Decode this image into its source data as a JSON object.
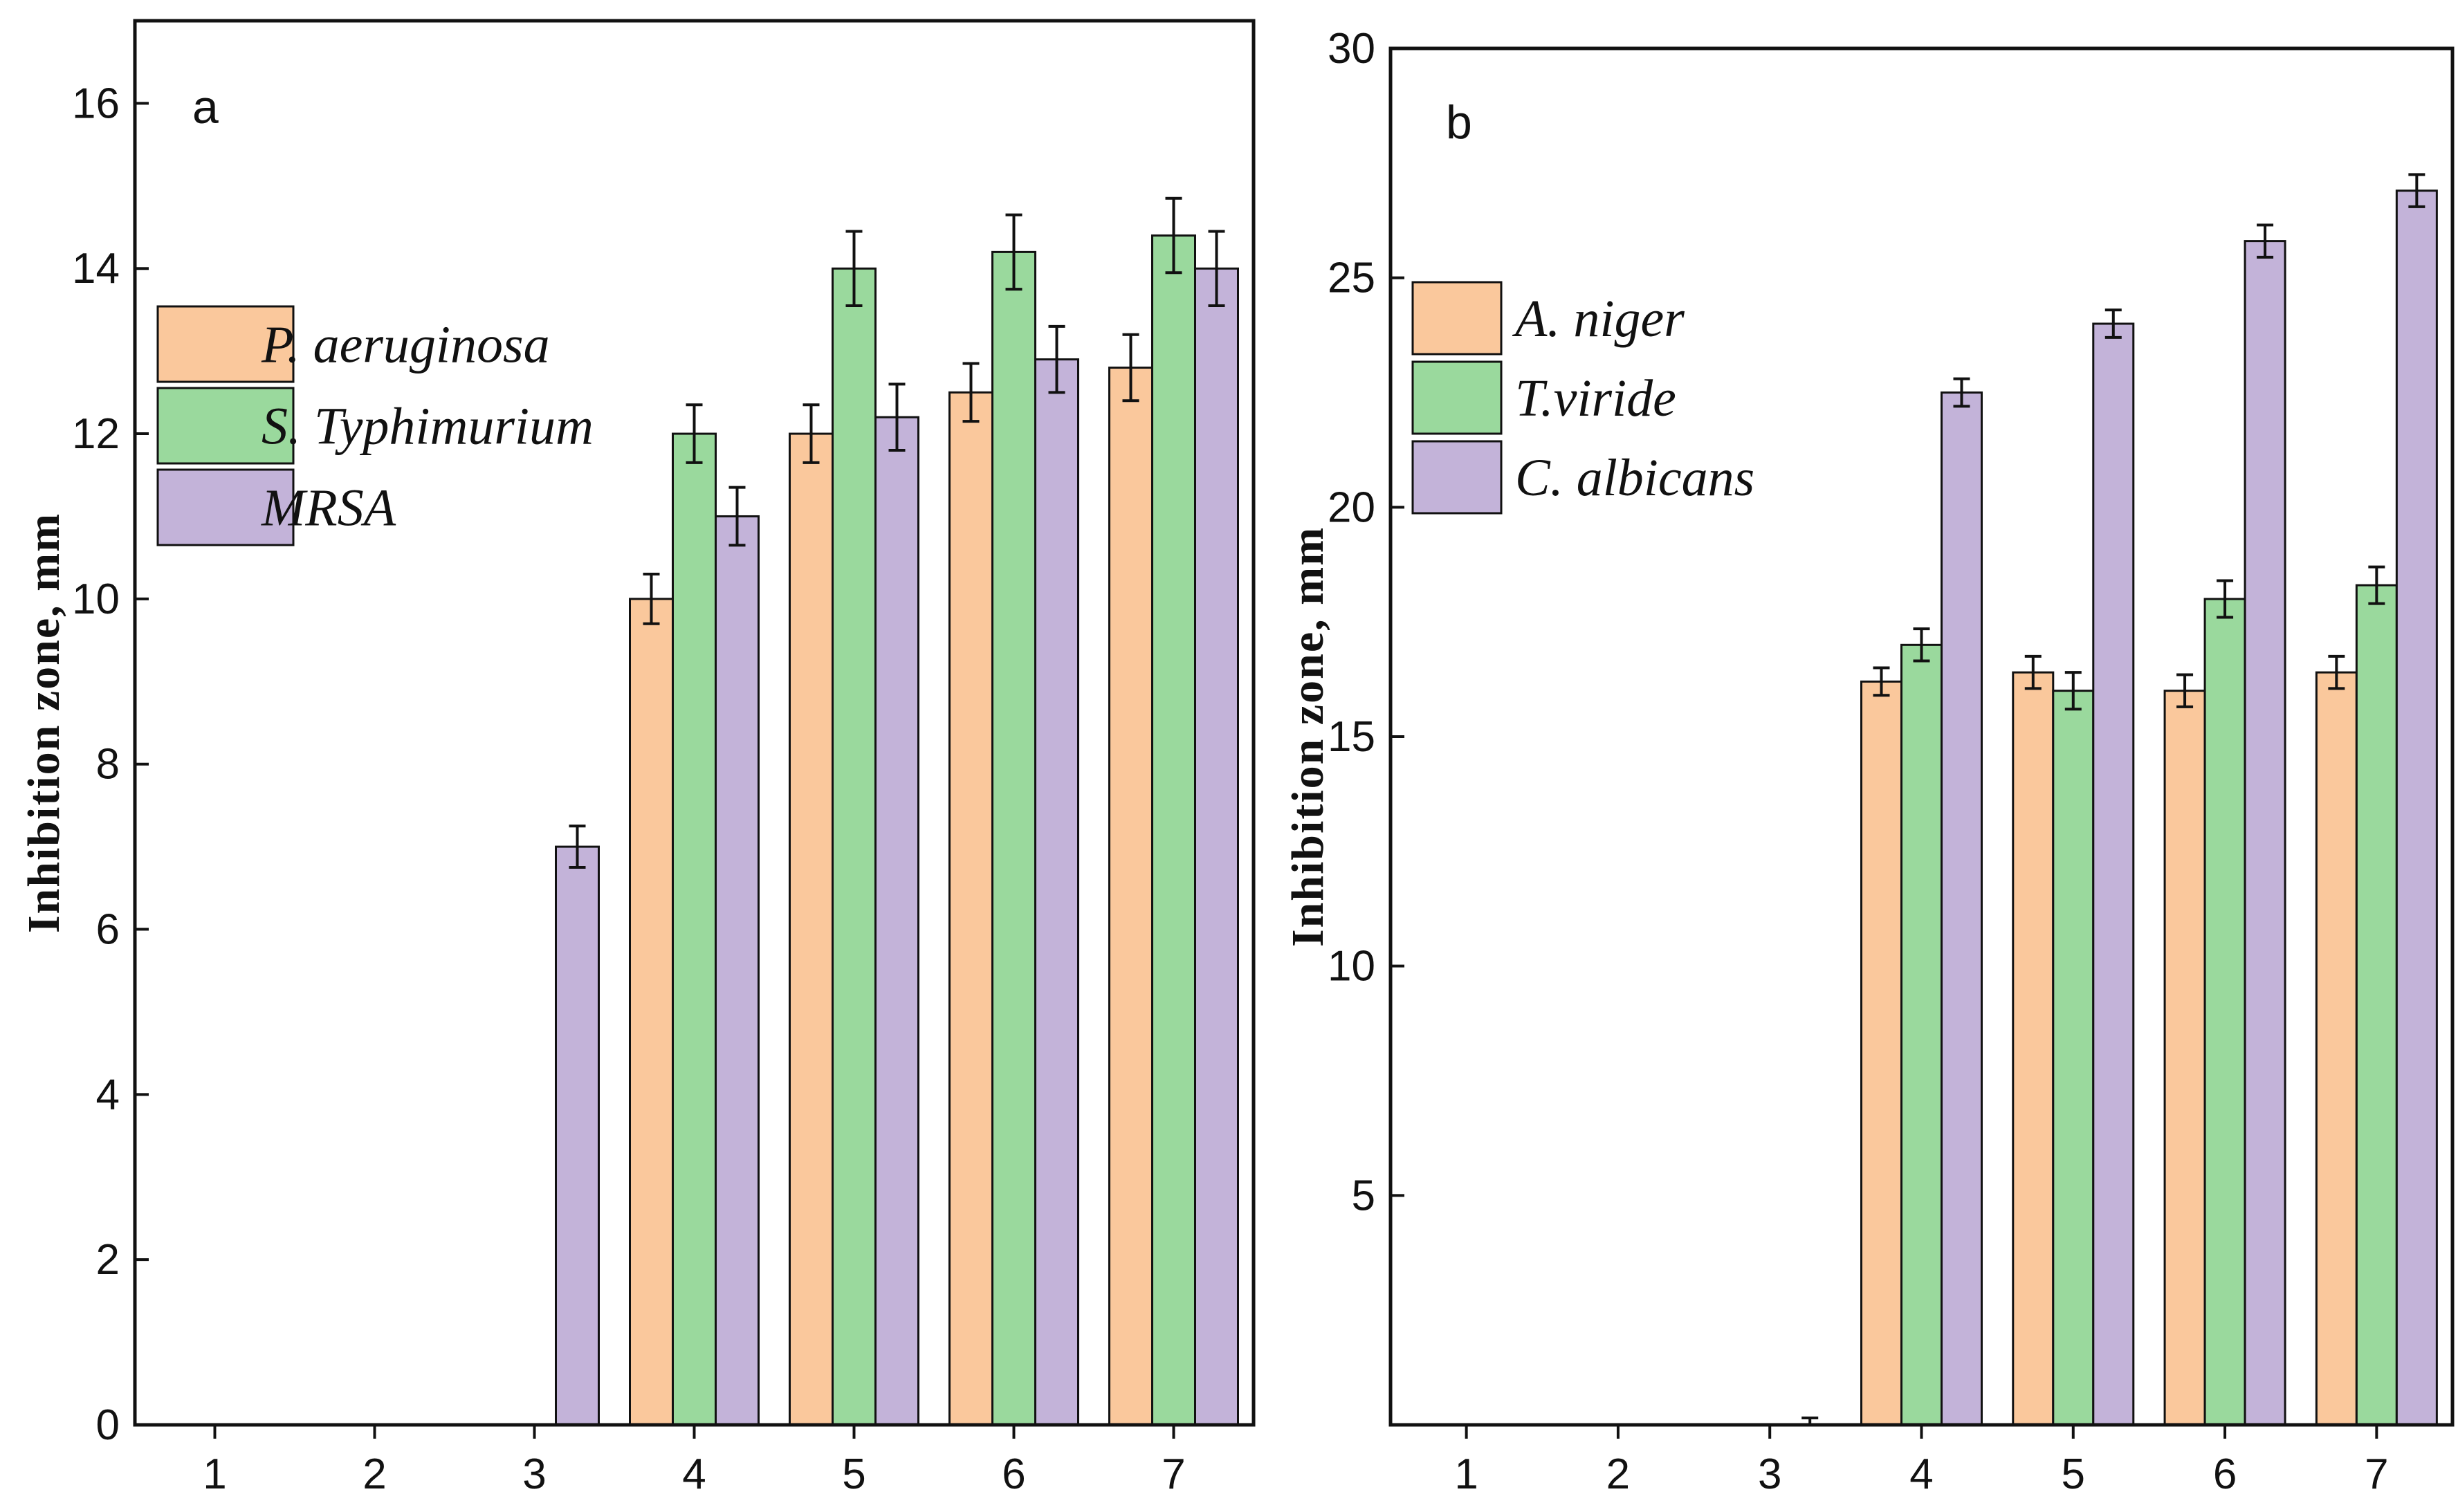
{
  "chart_data": [
    {
      "type": "bar",
      "panel_label": "a",
      "title": "",
      "xlabel": "",
      "ylabel": "Inhibition zone, mm",
      "categories": [
        "1",
        "2",
        "3",
        "4",
        "5",
        "6",
        "7"
      ],
      "ylim": [
        0,
        17
      ],
      "yticks": [
        "0",
        "2",
        "4",
        "6",
        "8",
        "10",
        "12",
        "14",
        "16"
      ],
      "legend_position": "left",
      "series": [
        {
          "name": "P. aeruginosa",
          "color": "#FAC89C",
          "values": [
            0,
            0,
            0,
            10.0,
            12.0,
            12.5,
            12.8
          ],
          "errors": [
            0,
            0,
            0,
            0.3,
            0.35,
            0.35,
            0.4
          ]
        },
        {
          "name": "S. Typhimurium",
          "color": "#9AD99D",
          "values": [
            0,
            0,
            0,
            12.0,
            14.0,
            14.2,
            14.4
          ],
          "errors": [
            0,
            0,
            0,
            0.35,
            0.45,
            0.45,
            0.45
          ]
        },
        {
          "name": "MRSA",
          "color": "#C3B3D9",
          "values": [
            0,
            0,
            7.0,
            11.0,
            12.2,
            12.9,
            14.0
          ],
          "errors": [
            0,
            0,
            0.25,
            0.35,
            0.4,
            0.4,
            0.45
          ]
        }
      ]
    },
    {
      "type": "bar",
      "panel_label": "b",
      "title": "",
      "xlabel": "",
      "ylabel": "Inhibition zone, mm",
      "categories": [
        "1",
        "2",
        "3",
        "4",
        "5",
        "6",
        "7"
      ],
      "ylim": [
        0,
        30
      ],
      "yticks": [
        "5",
        "10",
        "15",
        "20",
        "25",
        "30"
      ],
      "legend_position": "left",
      "series": [
        {
          "name": "A. niger",
          "color": "#FAC89C",
          "values": [
            0,
            0,
            0,
            16.2,
            16.4,
            16.0,
            16.4
          ],
          "errors": [
            0,
            0,
            0,
            0.3,
            0.35,
            0.35,
            0.35
          ]
        },
        {
          "name": "T.viride",
          "color": "#9AD99D",
          "values": [
            0,
            0,
            0,
            17.0,
            16.0,
            18.0,
            18.3
          ],
          "errors": [
            0,
            0,
            0,
            0.35,
            0.4,
            0.4,
            0.4
          ]
        },
        {
          "name": "C. albicans",
          "color": "#C3B3D9",
          "values": [
            0,
            0,
            0,
            22.5,
            24.0,
            25.8,
            26.9
          ],
          "errors": [
            0,
            0,
            0.15,
            0.3,
            0.3,
            0.35,
            0.35
          ]
        }
      ]
    }
  ]
}
